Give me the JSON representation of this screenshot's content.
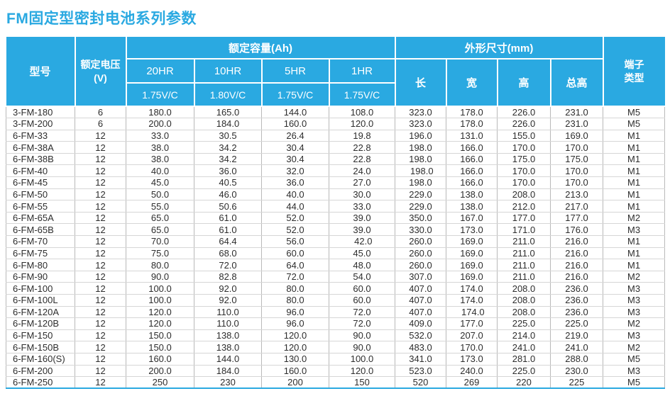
{
  "title": "FM固定型密封电池系列参数",
  "colors": {
    "accent_blue": "#2aa9e1",
    "header_text": "#ffffff",
    "body_text": "#2d2d2d",
    "grid_vertical": "#b9b9b9",
    "grid_horizontal": "#d6d6d6"
  },
  "table": {
    "col_names": [
      "model",
      "rated-voltage",
      "capacity-20hr",
      "capacity-10hr",
      "capacity-5hr",
      "capacity-1hr",
      "dim-length",
      "dim-width",
      "dim-height",
      "dim-total-height",
      "terminal-type"
    ],
    "header": {
      "model": "型号",
      "voltage": "额定电压\n(V)",
      "capacity_group": "额定容量(Ah)",
      "capacity_cols": [
        {
          "rate": "20HR",
          "cutoff": "1.75V/C"
        },
        {
          "rate": "10HR",
          "cutoff": "1.80V/C"
        },
        {
          "rate": "5HR",
          "cutoff": "1.75V/C"
        },
        {
          "rate": "1HR",
          "cutoff": "1.75V/C"
        }
      ],
      "dimensions_group": "外形尺寸(mm)",
      "dimension_cols": [
        "长",
        "宽",
        "高",
        "总高"
      ],
      "terminal": "端子\n类型"
    },
    "rows": [
      [
        "3-FM-180",
        "6",
        "180.0",
        "165.0",
        "144.0",
        "108.0",
        "323.0",
        "178.0",
        "226.0",
        "231.0",
        "M5"
      ],
      [
        "3-FM-200",
        "6",
        "200.0",
        "184.0",
        "160.0",
        "120.0",
        "323.0",
        "178.0",
        "226.0",
        "231.0",
        "M5"
      ],
      [
        "6-FM-33",
        "12",
        "33.0",
        "30.5",
        "26.4",
        "19.8",
        "196.0",
        "131.0",
        "155.0",
        "169.0",
        "M1"
      ],
      [
        "6-FM-38A",
        "12",
        "38.0",
        "34.2",
        "30.4",
        "22.8",
        "198.0",
        "166.0",
        "170.0",
        "170.0",
        "M1"
      ],
      [
        "6-FM-38B",
        "12",
        "38.0",
        "34.2",
        "30.4",
        "22.8",
        "198.0",
        "166.0",
        "175.0",
        "175.0",
        "M1"
      ],
      [
        "6-FM-40",
        "12",
        "40.0",
        "36.0",
        "32.0",
        "24.0",
        " 198.0",
        "166.0",
        "170.0",
        "170.0",
        "M1"
      ],
      [
        "6-FM-45",
        "12",
        "45.0",
        "40.5",
        "36.0",
        "27.0",
        "198.0",
        "166.0",
        "170.0",
        "170.0",
        "M1"
      ],
      [
        "6-FM-50",
        "12",
        "50.0",
        "46.0",
        "40.0",
        "30.0",
        "229.0",
        "138.0",
        "208.0",
        "213.0",
        "M1"
      ],
      [
        "6-FM-55",
        "12",
        "55.0",
        "50.6",
        "44.0",
        "33.0",
        "229.0",
        "138.0",
        "212.0",
        "217.0",
        "M1"
      ],
      [
        "6-FM-65A",
        "12",
        "65.0",
        "61.0",
        "52.0",
        "39.0",
        "350.0",
        "167.0",
        "177.0",
        "177.0",
        "M2"
      ],
      [
        "6-FM-65B",
        "12",
        "65.0",
        "61.0",
        "52.0",
        "39.0",
        "330.0",
        "173.0",
        "171.0",
        "176.0",
        "M3"
      ],
      [
        "6-FM-70",
        "12",
        "70.0",
        "64.4",
        "56.0",
        " 42.0",
        "260.0",
        "169.0",
        "211.0",
        "216.0",
        "M1"
      ],
      [
        "6-FM-75",
        "12",
        "75.0",
        "68.0",
        "60.0",
        "45.0",
        "260.0",
        "169.0",
        "211.0",
        "216.0",
        "M1"
      ],
      [
        "6-FM-80",
        "12",
        "80.0",
        "72.0",
        "64.0",
        "48.0",
        "260.0",
        "169.0",
        "211.0",
        "216.0",
        "M1"
      ],
      [
        "6-FM-90",
        "12",
        "90.0",
        "82.8",
        "72.0",
        "54.0",
        "307.0",
        "169.0",
        "211.0",
        "216.0",
        "M2"
      ],
      [
        "6-FM-100",
        "12",
        "100.0",
        "92.0",
        "80.0",
        "60.0",
        "407.0",
        "174.0",
        "208.0",
        "236.0",
        "M3"
      ],
      [
        "6-FM-100L",
        "12",
        "100.0",
        "92.0",
        "80.0",
        "60.0",
        "407.0",
        "174.0",
        "208.0",
        "236.0",
        "M3"
      ],
      [
        "6-FM-120A",
        "12",
        "120.0",
        "110.0",
        "96.0",
        "72.0",
        "407.0",
        " 174.0",
        "208.0",
        "236.0",
        "M3"
      ],
      [
        "6-FM-120B",
        "12",
        "120.0",
        "110.0",
        "96.0",
        "72.0",
        "409.0",
        "177.0",
        "225.0",
        "225.0",
        "M2"
      ],
      [
        "6-FM-150",
        "12",
        "150.0",
        "138.0",
        "120.0",
        "90.0",
        "532.0",
        "207.0",
        "214.0",
        "219.0",
        "M3"
      ],
      [
        "6-FM-150B",
        "12",
        "150.0",
        "138.0",
        "120.0",
        "90.0",
        "483.0",
        "170.0",
        "241.0",
        "241.0",
        "M2"
      ],
      [
        "6-FM-160(S)",
        "12",
        "160.0",
        "144.0",
        "130.0",
        "100.0",
        "341.0",
        "173.0",
        "281.0",
        "288.0",
        "M5"
      ],
      [
        "6-FM-200",
        "12",
        "200.0",
        "184.0",
        "160.0",
        "120.0",
        "523.0",
        "240.0",
        "225.0",
        "230.0",
        "M3"
      ],
      [
        "6-FM-250",
        "12",
        "250",
        "230",
        "200",
        "150",
        "520",
        "269",
        "220",
        "225",
        "M5"
      ]
    ]
  }
}
